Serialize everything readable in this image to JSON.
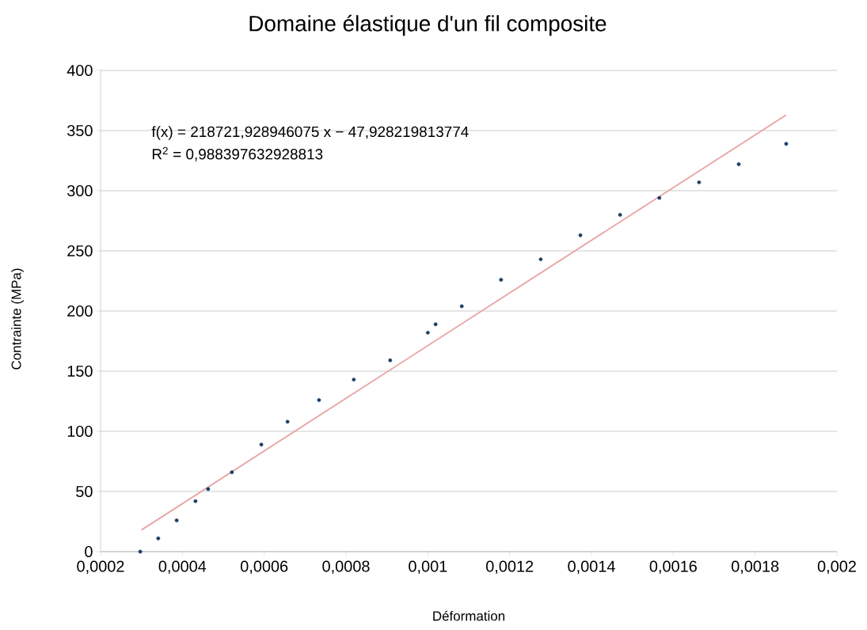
{
  "chart_data": {
    "type": "scatter",
    "title": "Domaine élastique d'un fil composite",
    "xlabel": "Déformation",
    "ylabel": "Contrainte (MPa)",
    "annotations": [
      "f(x) = 218721,928946075 x − 47,928219813774",
      "R$^{2}$ = 0,988397632928813"
    ],
    "series": [
      {
        "color": "#1b3f66",
        "marker": "circle",
        "x": [
          0.000297,
          0.000341,
          0.000386,
          0.000432,
          0.000463,
          0.000521,
          0.000593,
          0.000657,
          0.000734,
          0.000819,
          0.000908,
          0.001,
          0.001019,
          0.001083,
          0.001179,
          0.001276,
          0.001373,
          0.00147,
          0.001566,
          0.001663,
          0.00176,
          0.001876
        ],
        "values": [
          0,
          11,
          26,
          42,
          52,
          66,
          89,
          108,
          126,
          143,
          159,
          182,
          189,
          204,
          226,
          243,
          263,
          280,
          294,
          307,
          322,
          339
        ]
      },
      {
        "type": "line",
        "color": "#e8a3a3",
        "marker": "none",
        "line_style": "solid",
        "x": [
          0.0003,
          0.001876
        ],
        "values": [
          18,
          363
        ]
      }
    ],
    "xlim": [
      0.0002,
      0.002
    ],
    "ylim": [
      0,
      400
    ],
    "xticks": [
      {
        "value": 0.0002,
        "label": "0,0002"
      },
      {
        "value": 0.0004,
        "label": "0,0004"
      },
      {
        "value": 0.0006,
        "label": "0,0006"
      },
      {
        "value": 0.0008,
        "label": "0,0008"
      },
      {
        "value": 0.001,
        "label": "0,001"
      },
      {
        "value": 0.0012,
        "label": "0,0012"
      },
      {
        "value": 0.0014,
        "label": "0,0014"
      },
      {
        "value": 0.0016,
        "label": "0,0016"
      },
      {
        "value": 0.0018,
        "label": "0,0018"
      },
      {
        "value": 0.002,
        "label": "0,002"
      }
    ],
    "yticks": [
      0,
      50,
      100,
      150,
      200,
      250,
      300,
      350,
      400
    ],
    "grid": "y"
  }
}
